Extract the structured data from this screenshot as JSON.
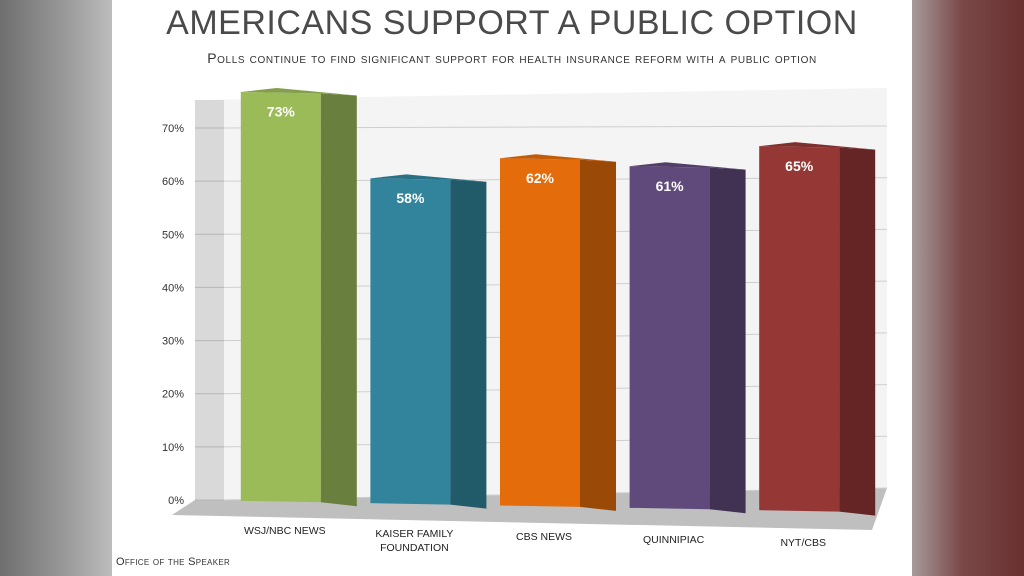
{
  "header": {
    "title": "AMERICANS SUPPORT A PUBLIC OPTION",
    "subtitle": "Polls continue to find significant support for health insurance reform with a public option"
  },
  "footer": {
    "source": "Office of the Speaker"
  },
  "chart_data": {
    "type": "bar",
    "title": "AMERICANS SUPPORT A PUBLIC OPTION",
    "subtitle": "Polls continue to find significant support for health insurance reform with a public option",
    "categories": [
      [
        "WSJ/NBC NEWS"
      ],
      [
        "KAISER FAMILY",
        "FOUNDATION"
      ],
      [
        "CBS NEWS"
      ],
      [
        "QUINNIPIAC"
      ],
      [
        "NYT/CBS"
      ]
    ],
    "values": [
      73,
      58,
      62,
      61,
      65
    ],
    "data_labels": [
      "73%",
      "58%",
      "62%",
      "61%",
      "65%"
    ],
    "colors": [
      "#9bbb59",
      "#31849b",
      "#e46c0a",
      "#604a7b",
      "#953735"
    ],
    "yticks": [
      "0%",
      "10%",
      "20%",
      "30%",
      "40%",
      "50%",
      "60%",
      "70%"
    ],
    "ylim": [
      0,
      70
    ],
    "grid": true,
    "style": "3d"
  }
}
